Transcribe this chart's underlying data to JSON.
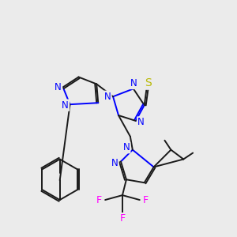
{
  "background_color": "#ebebeb",
  "N": "#0000ff",
  "S": "#b8b800",
  "F": "#ff00ff",
  "H": "#008080",
  "C": "#1a1a1a",
  "figsize": [
    3.0,
    3.0
  ],
  "dpi": 100
}
